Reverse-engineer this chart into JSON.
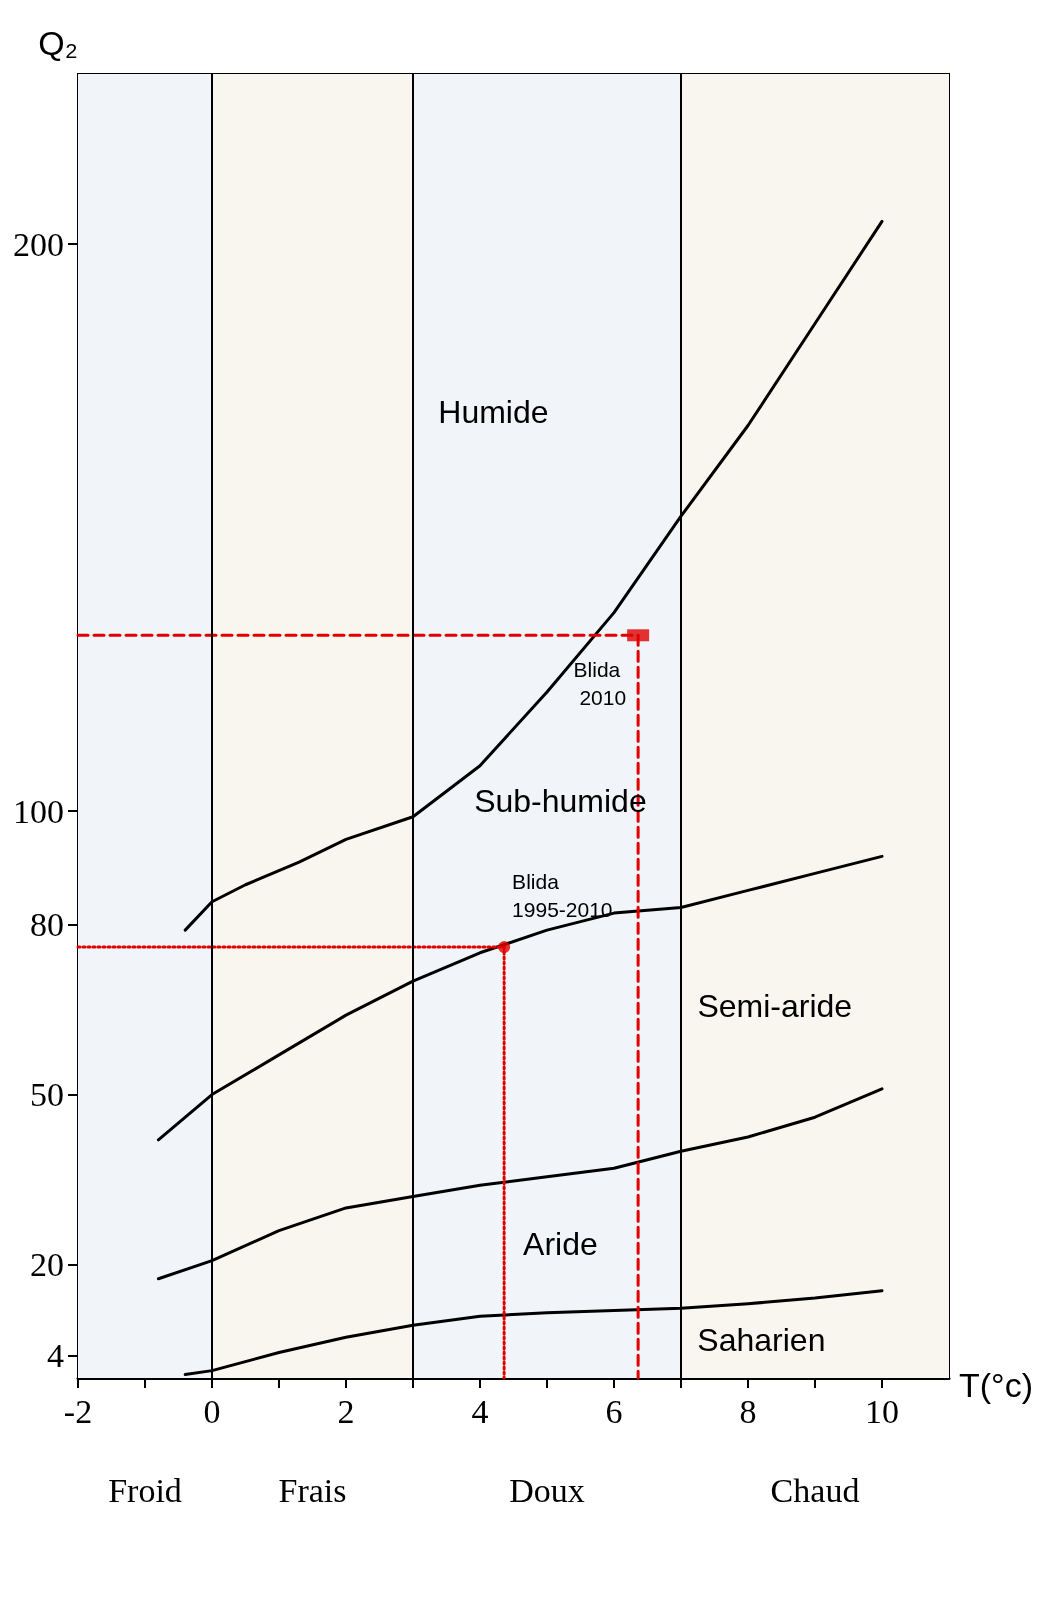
{
  "chart_data": {
    "type": "line",
    "xlabel": "T(°c)",
    "ylabel": "Q₂",
    "xlim": [
      -2,
      11
    ],
    "xticks": [
      -2,
      {
        "value": -1,
        "label": null
      },
      0,
      {
        "value": 1,
        "label": null
      },
      2,
      {
        "value": 3,
        "label": null
      },
      4,
      {
        "value": 5,
        "label": null
      },
      6,
      {
        "value": 7,
        "label": null
      },
      8,
      {
        "value": 9,
        "label": null
      },
      10
    ],
    "ylim": [
      0,
      230
    ],
    "yticks": [
      4,
      20,
      50,
      80,
      100,
      200
    ],
    "marker": "none",
    "line_style": "solid",
    "series": [
      {
        "color": "#000000",
        "x": [
          -0.4,
          0,
          0.5,
          1.3,
          2,
          3,
          4,
          5,
          6,
          7,
          8,
          9,
          10
        ],
        "values": [
          79,
          84,
          87,
          91,
          95,
          99,
          108,
          121,
          135,
          152,
          168,
          186,
          204
        ]
      },
      {
        "color": "#000000",
        "x": [
          -0.8,
          0,
          1,
          2,
          3,
          4,
          5,
          6,
          7,
          8,
          9,
          10
        ],
        "values": [
          42,
          50,
          57,
          64,
          70,
          75,
          79,
          82,
          83,
          86,
          89,
          92
        ]
      },
      {
        "color": "#000000",
        "x": [
          -0.8,
          0,
          1,
          2,
          3,
          4,
          5,
          6,
          7,
          8,
          9,
          10
        ],
        "values": [
          17.5,
          20.7,
          26,
          30,
          32,
          34,
          35.5,
          37,
          40,
          42.5,
          46,
          51
        ]
      },
      {
        "color": "#000000",
        "x": [
          -0.4,
          0,
          1,
          2,
          3,
          4,
          5,
          6,
          7,
          8,
          9,
          10
        ],
        "values": [
          0.6,
          1.3,
          4.5,
          7.2,
          9.3,
          10.9,
          11.5,
          11.9,
          12.3,
          13.1,
          14.1,
          15.4
        ]
      },
      {
        "color": "#e00000",
        "x": [
          -2,
          6.36
        ],
        "values": [
          131,
          131
        ],
        "line_style": "dashed"
      },
      {
        "color": "#e00000",
        "x": [
          6.36,
          6.36
        ],
        "values": [
          131,
          0
        ],
        "line_style": "dashed"
      },
      {
        "color": "#e00000",
        "x": [
          -2,
          4.36
        ],
        "values": [
          76,
          76
        ],
        "line_style": "dotted"
      },
      {
        "color": "#e00000",
        "x": [
          4.36,
          4.36
        ],
        "values": [
          76,
          0
        ],
        "line_style": "dotted"
      },
      {
        "type": "scatter",
        "color": "#e00000",
        "x": [
          6.36
        ],
        "values": [
          131
        ],
        "marker": "square"
      },
      {
        "type": "scatter",
        "color": "#e00000",
        "x": [
          4.36
        ],
        "values": [
          76
        ],
        "marker": "circle"
      }
    ],
    "ref_lines": [
      {
        "axis": "x",
        "value": 0,
        "color": "#000000"
      },
      {
        "axis": "x",
        "value": 3,
        "color": "#000000"
      },
      {
        "axis": "x",
        "value": 7,
        "color": "#000000"
      }
    ],
    "bands": [
      {
        "axis": "x",
        "from": -2,
        "to": 0,
        "label": "Froid",
        "color": "#f1f4f8"
      },
      {
        "axis": "x",
        "from": 0,
        "to": 3,
        "label": "Frais",
        "color": "#f8f6ee"
      },
      {
        "axis": "x",
        "from": 3,
        "to": 7,
        "label": "Doux",
        "color": "#f1f4f8"
      },
      {
        "axis": "x",
        "from": 7,
        "to": 11,
        "label": "Chaud",
        "color": "#f8f6ee"
      }
    ],
    "annotations": [
      "Humide",
      "Sub-humide",
      "Semi-aride",
      "Aride",
      "Saharien",
      {
        "text": "Blida 2010",
        "x": 6.36,
        "y": 131
      },
      {
        "text": "Blida 1995-2010",
        "x": 4.36,
        "y": 76
      }
    ]
  }
}
